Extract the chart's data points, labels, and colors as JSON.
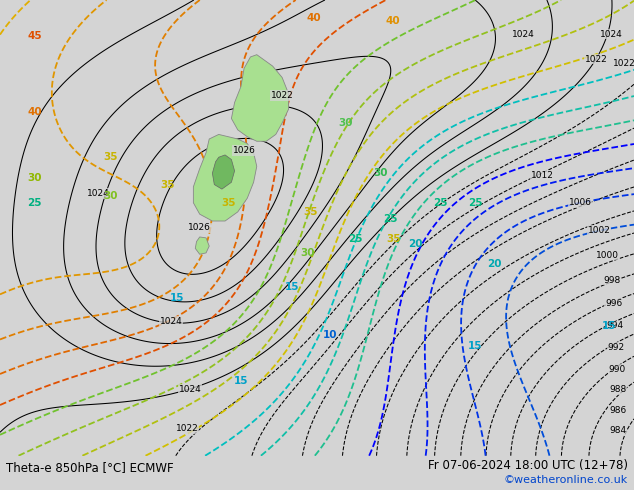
{
  "title_left": "Theta-e 850hPa [°C] ECMWF",
  "title_right": "Fr 07-06-2024 18:00 UTC (12+78)",
  "credit": "©weatheronline.co.uk",
  "background_color": "#d4d4d4",
  "map_background": "#d4d4d4",
  "figsize": [
    6.34,
    4.9
  ],
  "dpi": 100,
  "bottom_text_color": "#000000",
  "credit_color": "#0044cc",
  "font_size_bottom": 8.5,
  "font_size_credit": 8
}
